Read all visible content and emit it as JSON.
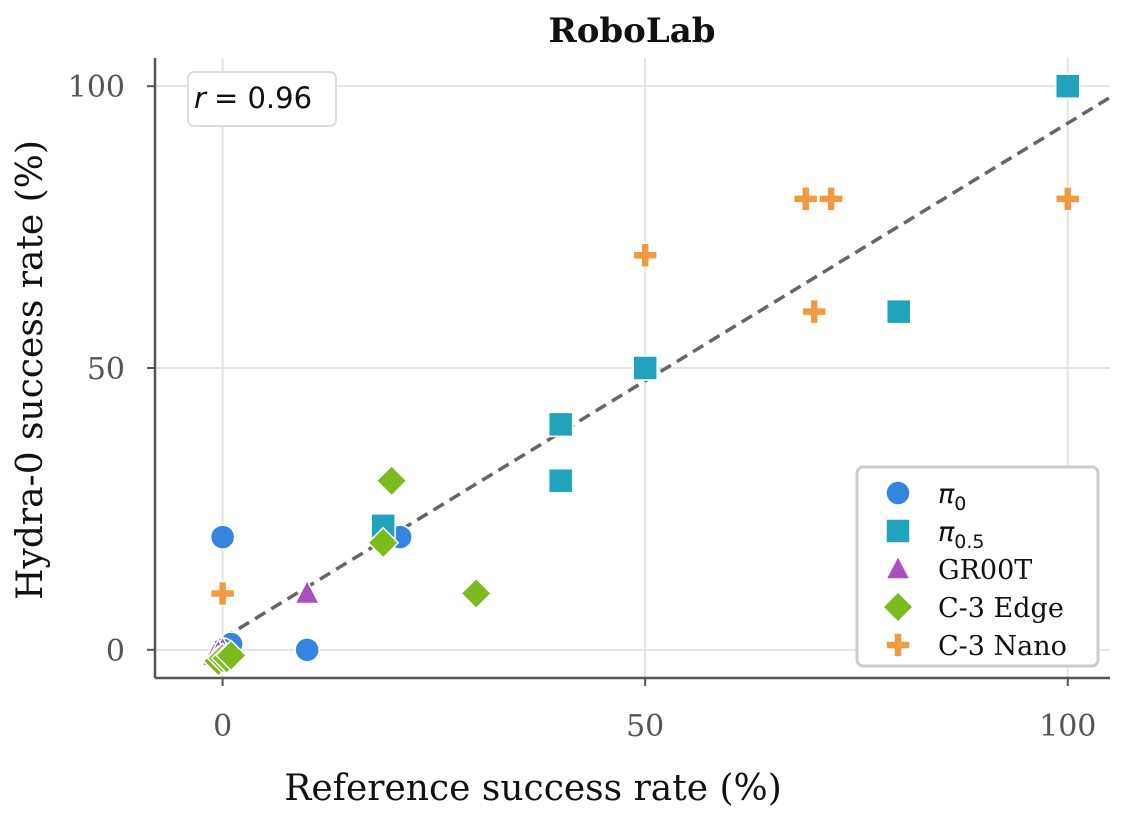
{
  "chart_data": {
    "type": "scatter",
    "title": "RoboLab",
    "xlabel": "Reference success rate (%)",
    "ylabel": "Hydra-0 success rate (%)",
    "xlim": [
      -8,
      105
    ],
    "ylim": [
      -5,
      105
    ],
    "xticks": [
      0,
      50,
      100
    ],
    "yticks": [
      0,
      50,
      100
    ],
    "grid": true,
    "legend_position": "bottom-right",
    "annotation": {
      "lhs": "r",
      "rhs": "= 0.96"
    },
    "fit_line": {
      "x": [
        0,
        105
      ],
      "y": [
        2,
        98
      ]
    },
    "series": [
      {
        "name": "π₀",
        "label_base": "π",
        "label_sub": "0",
        "marker": "circle",
        "color": "#3385E0",
        "points": [
          [
            0,
            20
          ],
          [
            21,
            20
          ],
          [
            1,
            1
          ],
          [
            0,
            0
          ],
          [
            10,
            0
          ]
        ]
      },
      {
        "name": "π₀.₅",
        "label_base": "π",
        "label_sub": "0.5",
        "marker": "square",
        "color": "#22A3BC",
        "points": [
          [
            100,
            100
          ],
          [
            80,
            60
          ],
          [
            50,
            50
          ],
          [
            40,
            40
          ],
          [
            40,
            30
          ],
          [
            19,
            22
          ]
        ]
      },
      {
        "name": "GR00T",
        "label_base": "GR00T",
        "label_sub": "",
        "marker": "triangle",
        "color": "#AB4FC0",
        "points": [
          [
            10,
            10
          ],
          [
            -1,
            -1
          ],
          [
            0,
            0
          ],
          [
            -0.5,
            -0.5
          ]
        ]
      },
      {
        "name": "C-3 Edge",
        "label_base": "C-3 Edge",
        "label_sub": "",
        "marker": "diamond",
        "color": "#7CBB1E",
        "points": [
          [
            20,
            30
          ],
          [
            19,
            19
          ],
          [
            30,
            10
          ],
          [
            -0.5,
            -2
          ],
          [
            0,
            -1.5
          ],
          [
            0.5,
            -1.5
          ],
          [
            1,
            -1
          ]
        ]
      },
      {
        "name": "C-3 Nano",
        "label_base": "C-3 Nano",
        "label_sub": "",
        "marker": "plus",
        "color": "#F29A40",
        "points": [
          [
            100,
            80
          ],
          [
            69,
            80
          ],
          [
            72,
            80
          ],
          [
            50,
            70
          ],
          [
            70,
            60
          ],
          [
            0,
            10
          ]
        ]
      }
    ]
  }
}
